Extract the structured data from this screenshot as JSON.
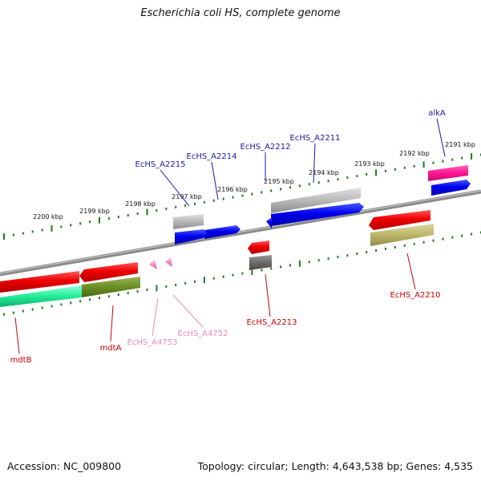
{
  "header": {
    "title": "Escherichia coli HS, complete genome"
  },
  "footer": {
    "accession": "Accession: NC_009800",
    "summary": "Topology: circular; Length: 4,643,538 bp; Genes: 4,535"
  },
  "colors": {
    "backbone": "#8a8a8a",
    "tick": "#1f7a1f",
    "label_forward": "#1a1aa8",
    "label_reverse": "#cc0000",
    "label_pink": "#ee88bb"
  },
  "ruler": {
    "unit": "kbp",
    "labels": [
      "2200 kbp",
      "2199 kbp",
      "2198 kbp",
      "2197 kbp",
      "2196 kbp",
      "2195 kbp",
      "2194 kbp",
      "2193 kbp",
      "2192 kbp",
      "2191 kbp"
    ]
  },
  "genes": [
    {
      "name": "alkA",
      "strand": "forward",
      "color": "#0000ee"
    },
    {
      "name": "EcHS_A2211",
      "strand": "forward",
      "color": "#0000ee"
    },
    {
      "name": "EcHS_A2212",
      "strand": "forward",
      "color": "#0000ee"
    },
    {
      "name": "EcHS_A2214",
      "strand": "forward",
      "color": "#0000ee"
    },
    {
      "name": "EcHS_A2215",
      "strand": "forward",
      "color": "#0000ee"
    },
    {
      "name": "EcHS_A2210",
      "strand": "reverse",
      "color": "#ee0000"
    },
    {
      "name": "EcHS_A2213",
      "strand": "reverse",
      "color": "#ee0000"
    },
    {
      "name": "mdtA",
      "strand": "reverse",
      "color": "#ee0000"
    },
    {
      "name": "mdtB",
      "strand": "reverse",
      "color": "#ee0000"
    },
    {
      "name": "EcHS_A4753",
      "strand": "reverse",
      "color": "#ff88cc"
    },
    {
      "name": "EcHS_A4752",
      "strand": "reverse",
      "color": "#ff88cc"
    }
  ]
}
